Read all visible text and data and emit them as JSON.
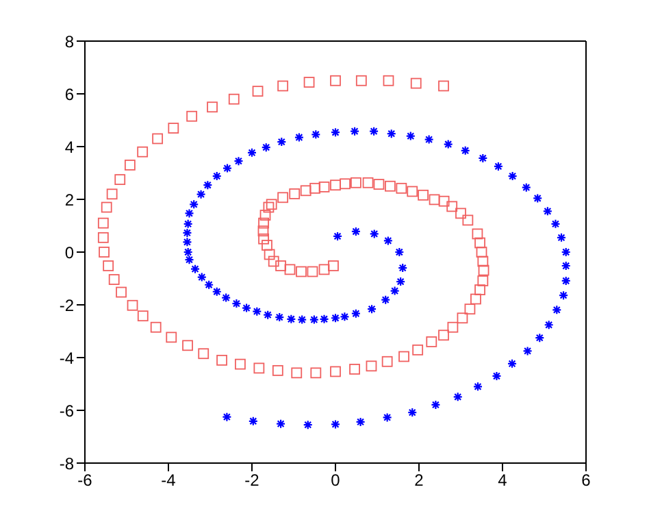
{
  "chart_data": {
    "type": "scatter",
    "xlim": [
      -6,
      6
    ],
    "xticks": [
      -6,
      -4,
      -2,
      0,
      2,
      4,
      6
    ],
    "ylim": [
      -8,
      8
    ],
    "yticks": [
      -8,
      -6,
      -4,
      -2,
      0,
      2,
      4,
      6,
      8
    ],
    "grid": false,
    "legend": false,
    "series": [
      {
        "color": "#f06060",
        "marker": "square",
        "x": [
          2.59,
          1.93,
          1.27,
          0.62,
          0,
          -0.63,
          -1.26,
          -1.86,
          -2.43,
          -2.95,
          -3.44,
          -3.88,
          -4.26,
          -4.62,
          -4.92,
          -5.16,
          -5.35,
          -5.48,
          -5.56,
          -5.56,
          -5.54,
          -5.44,
          -5.3,
          -5.13,
          -4.86,
          -4.61,
          -4.3,
          -3.93,
          -3.54,
          -3.16,
          -2.72,
          -2.28,
          -1.83,
          -1.38,
          -0.93,
          -0.47,
          0,
          0.46,
          0.86,
          1.24,
          1.64,
          1.97,
          2.3,
          2.59,
          2.81,
          3.04,
          3.22,
          3.36,
          3.46,
          3.53,
          3.55,
          3.53,
          3.5,
          3.46,
          3.4,
          3.17,
          3.0,
          2.79,
          2.6,
          2.37,
          2.1,
          1.84,
          1.58,
          1.31,
          1.04,
          0.78,
          0.49,
          0.23,
          0,
          -0.27,
          -0.49,
          -0.71,
          -0.98,
          -1.26,
          -1.53,
          -1.6,
          -1.68,
          -1.72,
          -1.73,
          -1.72,
          -1.64,
          -1.58,
          -1.48,
          -1.31,
          -1.09,
          -0.82,
          -0.55,
          -0.27,
          -0.05
        ],
        "values": [
          6.3,
          6.4,
          6.5,
          6.5,
          6.5,
          6.44,
          6.3,
          6.1,
          5.8,
          5.5,
          5.15,
          4.7,
          4.3,
          3.8,
          3.3,
          2.75,
          2.2,
          1.7,
          1.1,
          0.55,
          0,
          -0.52,
          -1.04,
          -1.52,
          -2.02,
          -2.42,
          -2.85,
          -3.23,
          -3.54,
          -3.85,
          -4.1,
          -4.25,
          -4.4,
          -4.49,
          -4.58,
          -4.58,
          -4.53,
          -4.44,
          -4.32,
          -4.15,
          -3.96,
          -3.71,
          -3.4,
          -3.15,
          -2.85,
          -2.5,
          -2.16,
          -1.78,
          -1.43,
          -1.09,
          -0.69,
          -0.35,
          0,
          0.35,
          0.69,
          1.21,
          1.47,
          1.73,
          1.93,
          1.99,
          2.16,
          2.3,
          2.42,
          2.5,
          2.57,
          2.63,
          2.63,
          2.59,
          2.54,
          2.47,
          2.42,
          2.33,
          2.21,
          2.07,
          1.81,
          1.7,
          1.4,
          1.1,
          0.8,
          0.5,
          0.26,
          -0.09,
          -0.35,
          -0.52,
          -0.66,
          -0.74,
          -0.74,
          -0.66,
          -0.52
        ]
      },
      {
        "color": "#0000ff",
        "marker": "cross",
        "x": [
          0.05,
          0.49,
          0.93,
          1.26,
          1.53,
          1.61,
          1.56,
          1.42,
          1.2,
          0.87,
          0.49,
          0.22,
          0,
          -0.27,
          -0.51,
          -0.8,
          -1.06,
          -1.34,
          -1.62,
          -1.88,
          -2.13,
          -2.37,
          -2.62,
          -2.84,
          -3.03,
          -3.2,
          -3.36,
          -3.5,
          -3.53,
          -3.55,
          -3.55,
          -3.53,
          -3.5,
          -3.39,
          -3.22,
          -3.06,
          -2.84,
          -2.59,
          -2.32,
          -2.0,
          -1.66,
          -1.29,
          -0.87,
          -0.47,
          0,
          0.46,
          0.92,
          1.34,
          1.8,
          2.24,
          2.7,
          3.11,
          3.53,
          3.9,
          4.24,
          4.57,
          4.84,
          5.08,
          5.27,
          5.41,
          5.52,
          5.52,
          5.52,
          5.46,
          5.3,
          5.11,
          4.89,
          4.6,
          4.23,
          3.86,
          3.41,
          2.93,
          2.4,
          1.84,
          1.24,
          0.6,
          0,
          -0.66,
          -1.31,
          -1.97,
          -2.6
        ],
        "values": [
          0.6,
          0.78,
          0.69,
          0.43,
          0,
          -0.6,
          -1.12,
          -1.47,
          -1.81,
          -2.16,
          -2.33,
          -2.45,
          -2.5,
          -2.54,
          -2.56,
          -2.56,
          -2.54,
          -2.47,
          -2.38,
          -2.25,
          -2.12,
          -1.95,
          -1.73,
          -1.5,
          -1.24,
          -0.95,
          -0.64,
          -0.29,
          0,
          0.38,
          0.73,
          1.07,
          1.47,
          1.81,
          2.19,
          2.54,
          2.88,
          3.18,
          3.45,
          3.77,
          3.97,
          4.18,
          4.35,
          4.46,
          4.54,
          4.58,
          4.58,
          4.49,
          4.4,
          4.27,
          4.09,
          3.85,
          3.56,
          3.25,
          2.88,
          2.45,
          2.04,
          1.55,
          1.07,
          0.55,
          0,
          -0.52,
          -1.09,
          -1.64,
          -2.19,
          -2.76,
          -3.25,
          -3.75,
          -4.23,
          -4.7,
          -5.1,
          -5.49,
          -5.79,
          -6.08,
          -6.27,
          -6.44,
          -6.53,
          -6.55,
          -6.51,
          -6.41,
          -6.25
        ]
      }
    ]
  }
}
